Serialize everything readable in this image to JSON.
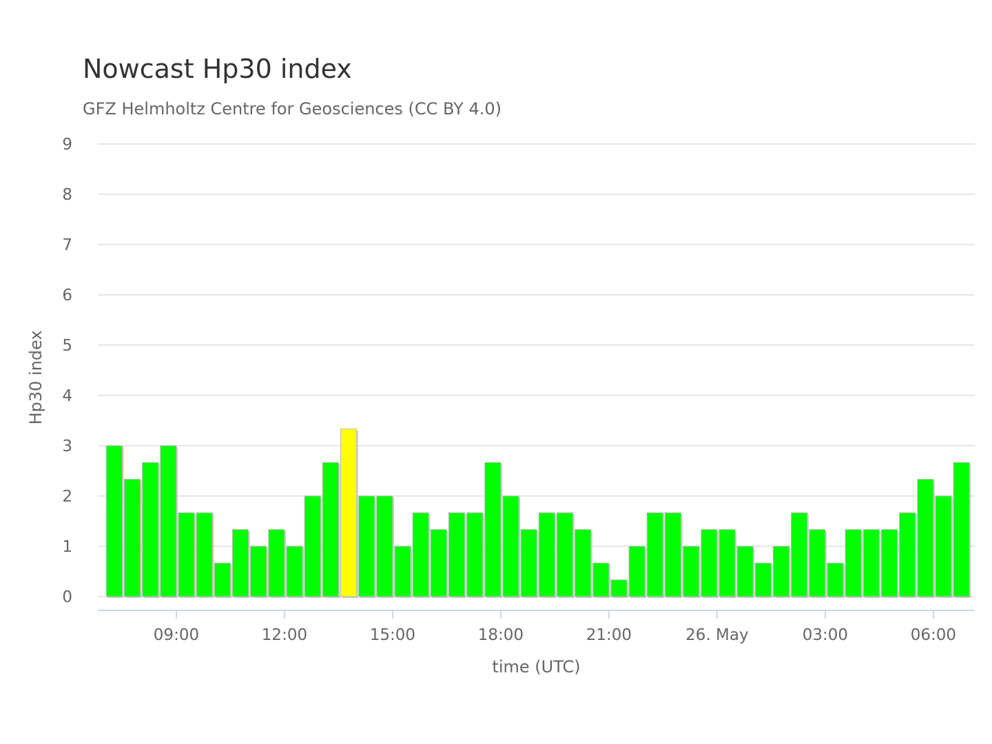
{
  "chart_data": {
    "type": "bar",
    "title": "Nowcast Hp30 index",
    "subtitle": "GFZ Helmholtz Centre for Geosciences (CC BY 4.0)",
    "xlabel": "time (UTC)",
    "ylabel": "Hp30 index",
    "ylim": [
      0,
      9
    ],
    "yticks": [
      "0",
      "1",
      "2",
      "3",
      "4",
      "5",
      "6",
      "7",
      "8",
      "9"
    ],
    "xticks": [
      {
        "label": "09:00",
        "hours": 2
      },
      {
        "label": "12:00",
        "hours": 5
      },
      {
        "label": "15:00",
        "hours": 8
      },
      {
        "label": "18:00",
        "hours": 11
      },
      {
        "label": "21:00",
        "hours": 14
      },
      {
        "label": "26. May",
        "hours": 17
      },
      {
        "label": "03:00",
        "hours": 20
      },
      {
        "label": "06:00",
        "hours": 23
      }
    ],
    "x_start": "07:00",
    "interval_minutes": 30,
    "grid": true,
    "colors": {
      "normal": "#00ff00",
      "highlight": "#ffff00"
    },
    "highlight_threshold": 3.333,
    "values": [
      3,
      2.333,
      2.667,
      3,
      1.667,
      1.667,
      0.667,
      1.333,
      1,
      1.333,
      1,
      2,
      2.667,
      3.333,
      2,
      2,
      1,
      1.667,
      1.333,
      1.667,
      1.667,
      2.667,
      2,
      1.333,
      1.667,
      1.667,
      1.333,
      0.667,
      0.333,
      1,
      1.667,
      1.667,
      1,
      1.333,
      1.333,
      1,
      0.667,
      1,
      1.667,
      1.333,
      0.667,
      1.333,
      1.333,
      1.333,
      1.667,
      2.333,
      2,
      2.667
    ]
  }
}
